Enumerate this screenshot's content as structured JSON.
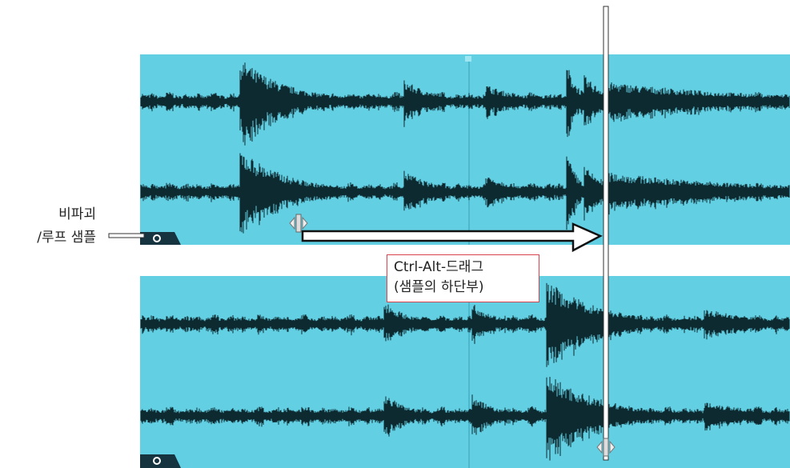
{
  "labels": {
    "line1": "비파괴",
    "line2": "/루프 샘플"
  },
  "callout": {
    "line1": "Ctrl-Alt-드래그",
    "line2": "(샘플의 하단부)"
  }
}
